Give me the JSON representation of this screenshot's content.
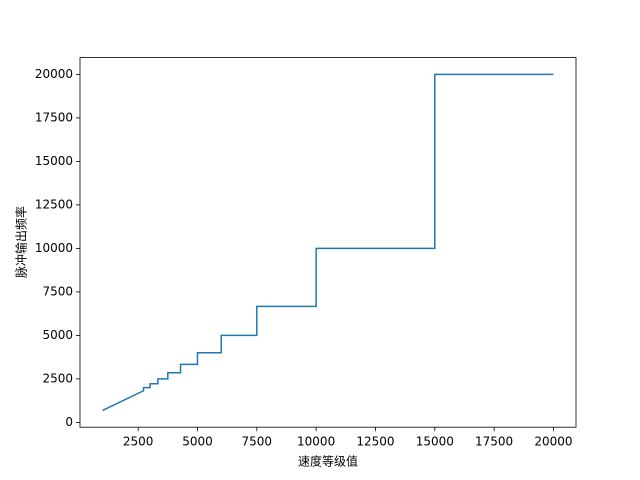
{
  "chart_data": {
    "type": "line",
    "xlabel": "速度等级值",
    "ylabel": "脉冲输出频率",
    "x": [
      1000,
      2727,
      2727,
      3000,
      3000,
      3333,
      3333,
      3750,
      3750,
      4286,
      4286,
      5000,
      5000,
      6000,
      6000,
      7500,
      7500,
      10000,
      10000,
      15000,
      15000,
      20000
    ],
    "series": [
      {
        "color": "#1f77b4",
        "values": [
          690,
          1818,
          2000,
          2000,
          2222,
          2222,
          2500,
          2500,
          2857,
          2857,
          3333,
          3333,
          4000,
          4000,
          5000,
          5000,
          6667,
          6667,
          10000,
          10000,
          20000,
          20000
        ]
      }
    ],
    "xlim": [
      50,
      20950
    ],
    "ylim": [
      -275.5,
      20965.5
    ],
    "xticks": [
      2500,
      5000,
      7500,
      10000,
      12500,
      15000,
      17500,
      20000
    ],
    "yticks": [
      0,
      2500,
      5000,
      7500,
      10000,
      12500,
      15000,
      17500,
      20000
    ],
    "grid": false
  }
}
